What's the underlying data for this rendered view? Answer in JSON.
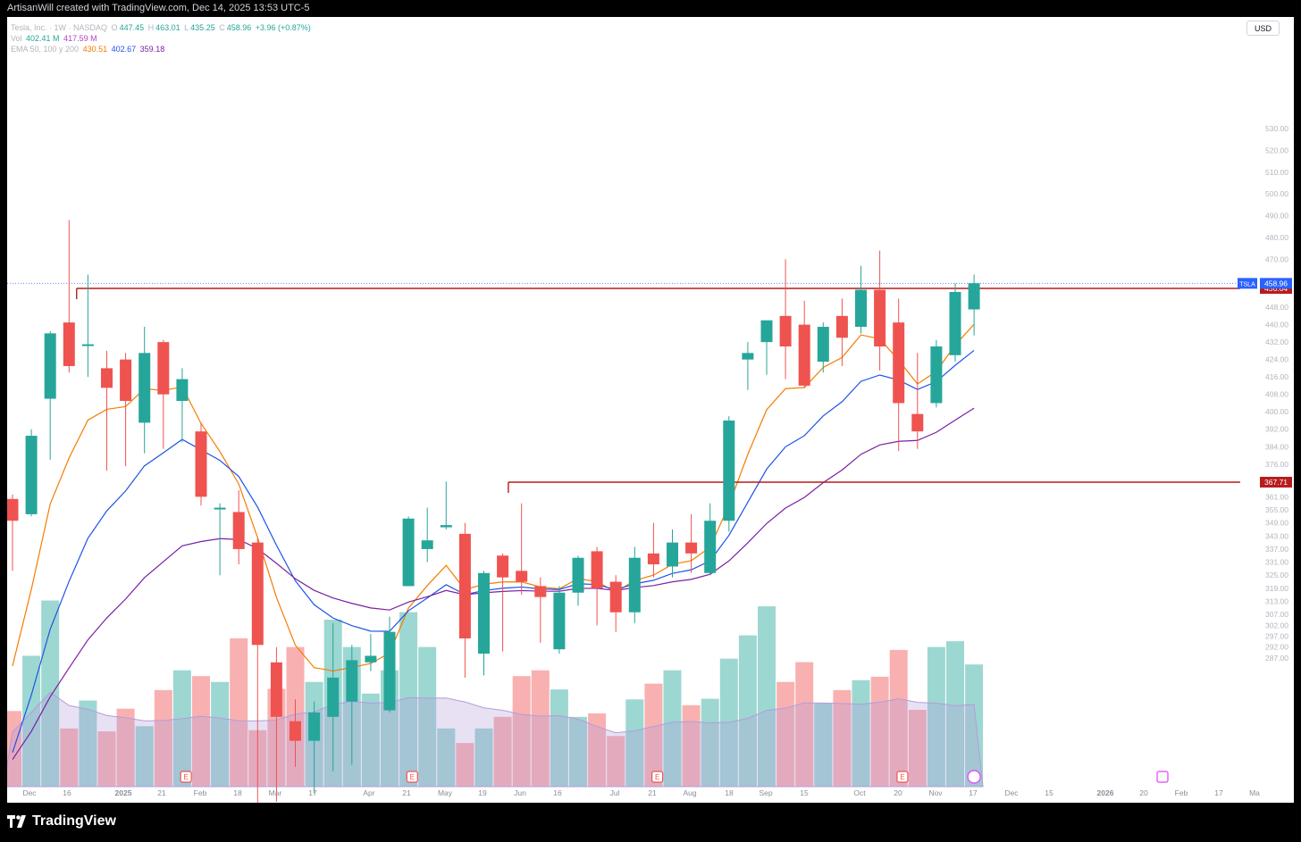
{
  "header": {
    "credit": "ArtisanWill created with TradingView.com, Dec 14, 2025 13:53 UTC-5"
  },
  "legend": {
    "symbol": "Tesla, Inc. · 1W · NASDAQ",
    "ohlc": {
      "o_label": "O",
      "o": "447.45",
      "h_label": "H",
      "h": "463.01",
      "l_label": "L",
      "l": "435.25",
      "c_label": "C",
      "c": "458.96",
      "change": "+3.96 (+0.87%)"
    },
    "vol": {
      "label": "Vol",
      "v1": "402.41 M",
      "v2": "417.59 M"
    },
    "ema": {
      "label": "EMA 50, 100 y 200",
      "e50": "430.51",
      "e100": "402.67",
      "e200": "359.18"
    }
  },
  "currency_button": "USD",
  "footer": {
    "brand": "TradingView"
  },
  "colors": {
    "up": "#26a69a",
    "down": "#ef5350",
    "ema50": "#f57c00",
    "ema100": "#1e53e5",
    "ema200": "#7b1fa2",
    "hline": "#b71c1c",
    "accent": "#2962ff"
  },
  "chart_data": {
    "type": "candlestick",
    "symbol": "TSLA",
    "interval": "1W",
    "y_axis_labels": [
      "530.00",
      "520.00",
      "510.00",
      "500.00",
      "490.00",
      "480.00",
      "470.00",
      "456.64",
      "448.00",
      "440.00",
      "432.00",
      "424.00",
      "416.00",
      "408.00",
      "400.00",
      "392.00",
      "384.00",
      "376.00",
      "367.71",
      "361.00",
      "355.00",
      "349.00",
      "343.00",
      "337.00",
      "331.00",
      "325.00",
      "319.00",
      "313.00",
      "307.00",
      "302.00",
      "297.00",
      "292.00",
      "287.00"
    ],
    "x_axis_labels": [
      "Dec",
      "16",
      "2025",
      "21",
      "Feb",
      "18",
      "Mar",
      "17",
      "Apr",
      "21",
      "May",
      "19",
      "Jun",
      "16",
      "Jul",
      "21",
      "Aug",
      "18",
      "Sep",
      "15",
      "Oct",
      "20",
      "Nov",
      "17",
      "Dec",
      "15",
      "2026",
      "20",
      "Feb",
      "17",
      "Ma"
    ],
    "last_price_label": {
      "symbol": "TSLA",
      "value": "458.96"
    },
    "horizontal_lines": [
      {
        "value": "456.64"
      },
      {
        "value": "367.71"
      }
    ],
    "candles": [
      {
        "o": 360,
        "h": 362,
        "l": 327,
        "c": 350
      },
      {
        "o": 353,
        "h": 392,
        "l": 352,
        "c": 389
      },
      {
        "o": 406,
        "h": 437,
        "l": 378,
        "c": 436
      },
      {
        "o": 441,
        "h": 488,
        "l": 418,
        "c": 421
      },
      {
        "o": 431,
        "h": 463,
        "l": 416,
        "c": 431
      },
      {
        "o": 420,
        "h": 428,
        "l": 373,
        "c": 411
      },
      {
        "o": 424,
        "h": 427,
        "l": 375,
        "c": 405
      },
      {
        "o": 395,
        "h": 439,
        "l": 381,
        "c": 427
      },
      {
        "o": 432,
        "h": 433,
        "l": 383,
        "c": 408
      },
      {
        "o": 405,
        "h": 420,
        "l": 386,
        "c": 415
      },
      {
        "o": 391,
        "h": 395,
        "l": 357,
        "c": 361
      },
      {
        "o": 356,
        "h": 358,
        "l": 325,
        "c": 356
      },
      {
        "o": 354,
        "h": 364,
        "l": 330,
        "c": 337
      },
      {
        "o": 340,
        "h": 342,
        "l": 217,
        "c": 293
      },
      {
        "o": 285,
        "h": 292,
        "l": 221,
        "c": 260
      },
      {
        "o": 258,
        "h": 268,
        "l": 237,
        "c": 249
      },
      {
        "o": 249,
        "h": 267,
        "l": 225,
        "c": 262
      },
      {
        "o": 260,
        "h": 303,
        "l": 235,
        "c": 278
      },
      {
        "o": 267,
        "h": 293,
        "l": 238,
        "c": 286
      },
      {
        "o": 285,
        "h": 298,
        "l": 281,
        "c": 288
      },
      {
        "o": 263,
        "h": 306,
        "l": 262,
        "c": 299
      },
      {
        "o": 320,
        "h": 352,
        "l": 320,
        "c": 351
      },
      {
        "o": 337,
        "h": 356,
        "l": 331,
        "c": 341
      },
      {
        "o": 347,
        "h": 368,
        "l": 346,
        "c": 348
      },
      {
        "o": 344,
        "h": 349,
        "l": 278,
        "c": 296
      },
      {
        "o": 289,
        "h": 327,
        "l": 279,
        "c": 326
      },
      {
        "o": 334,
        "h": 335,
        "l": 290,
        "c": 324
      },
      {
        "o": 327,
        "h": 358,
        "l": 316,
        "c": 322
      },
      {
        "o": 320,
        "h": 324,
        "l": 294,
        "c": 315
      },
      {
        "o": 291,
        "h": 320,
        "l": 289,
        "c": 317
      },
      {
        "o": 317,
        "h": 334,
        "l": 311,
        "c": 333
      },
      {
        "o": 336,
        "h": 338,
        "l": 302,
        "c": 319
      },
      {
        "o": 322,
        "h": 325,
        "l": 299,
        "c": 308
      },
      {
        "o": 308,
        "h": 338,
        "l": 303,
        "c": 333
      },
      {
        "o": 335,
        "h": 349,
        "l": 324,
        "c": 330
      },
      {
        "o": 329,
        "h": 346,
        "l": 324,
        "c": 340
      },
      {
        "o": 340,
        "h": 353,
        "l": 326,
        "c": 335
      },
      {
        "o": 326,
        "h": 358,
        "l": 325,
        "c": 350
      },
      {
        "o": 350,
        "h": 398,
        "l": 345,
        "c": 396
      },
      {
        "o": 424,
        "h": 432,
        "l": 410,
        "c": 427
      },
      {
        "o": 432,
        "h": 440,
        "l": 417,
        "c": 442
      },
      {
        "o": 444,
        "h": 470,
        "l": 415,
        "c": 430
      },
      {
        "o": 440,
        "h": 451,
        "l": 411,
        "c": 412
      },
      {
        "o": 423,
        "h": 441,
        "l": 418,
        "c": 439
      },
      {
        "o": 444,
        "h": 452,
        "l": 421,
        "c": 434
      },
      {
        "o": 439,
        "h": 467,
        "l": 436,
        "c": 456
      },
      {
        "o": 456,
        "h": 474,
        "l": 419,
        "c": 430
      },
      {
        "o": 441,
        "h": 452,
        "l": 382,
        "c": 404
      },
      {
        "o": 399,
        "h": 427,
        "l": 383,
        "c": 391
      },
      {
        "o": 404,
        "h": 433,
        "l": 402,
        "c": 430
      },
      {
        "o": 426,
        "h": 459,
        "l": 423,
        "c": 455
      },
      {
        "o": 447,
        "h": 463,
        "l": 435,
        "c": 459
      }
    ],
    "volume": [
      130,
      225,
      320,
      100,
      148,
      95,
      134,
      104,
      166,
      200,
      190,
      180,
      255,
      97,
      168,
      240,
      180,
      287,
      240,
      160,
      200,
      300,
      240,
      100,
      75,
      100,
      120,
      190,
      200,
      167,
      120,
      126,
      87,
      150,
      177,
      200,
      140,
      151,
      220,
      260,
      310,
      180,
      214,
      143,
      166,
      183,
      189,
      235,
      132,
      240,
      250,
      210
    ]
  }
}
